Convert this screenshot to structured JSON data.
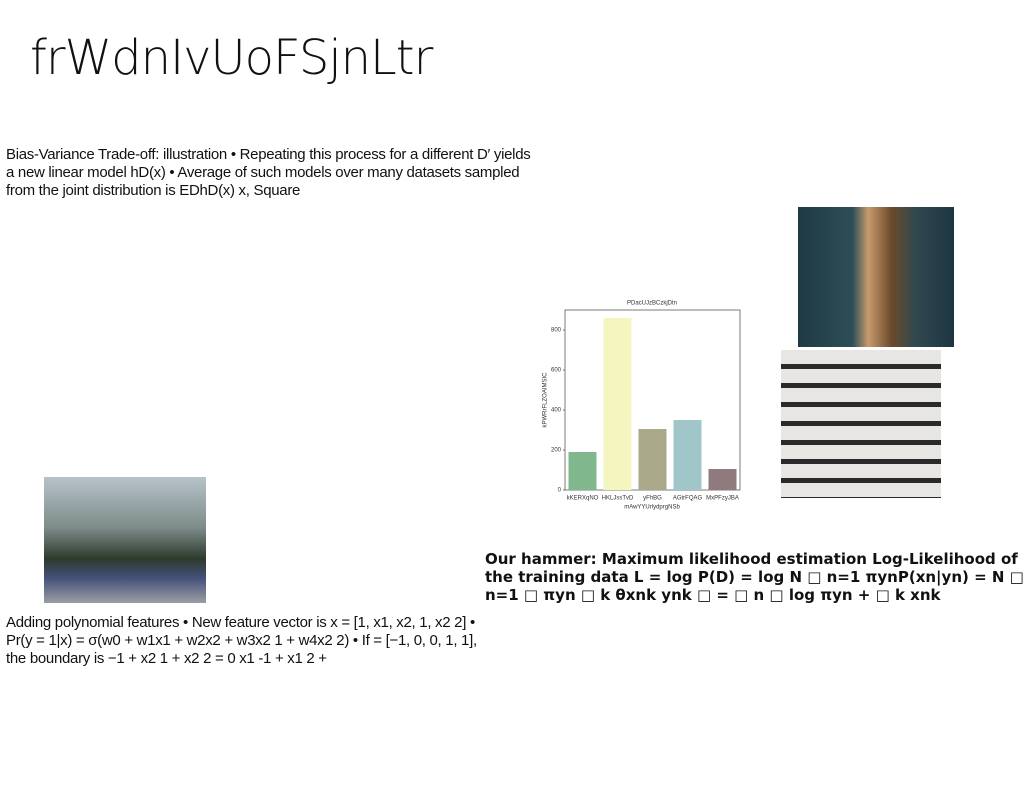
{
  "header": {
    "title": "frWdnIvUoFSjnLtr"
  },
  "paragraphs": [
    "Bias-Variance Trade-off: illustration • Repeating this process for a different D′ yields a new linear model hD(x) • Average of such models over many datasets sampled from the joint distribution is EDhD(x) x, Square",
    "Adding polynomial features • New feature vector is x = [1, x1, x2, 1, x2 2] • Pr(y = 1|x) = σ(w0 + w1x1 + w2x2 + w3x2 1 + w4x2 2) • If = [−1, 0, 0, 1, 1], the boundary is −1 + x2 1 + x2 2 = 0 x1 -1 + x1 2 +",
    "Our hammer: Maximum likelihood estimation Log-Likelihood of the training data L = log P(D) = log N □ n=1 πynP(xn|yn) = N □ n=1 □ πyn □ k θxnk ynk □ = □ n □ log πyn + □ k xnk"
  ],
  "chart_data": {
    "type": "bar",
    "title": "PDacUJzBCzkjDtn",
    "x_label": "mAwYYUrlydprgNSb",
    "y_label": "kPWRrFLZOAIMSIC",
    "categories": [
      "kKERXqNO",
      "HKLJssTvD",
      "yFhBG",
      "AGtrFQAG",
      "MxPFzyJBA"
    ],
    "values": [
      190,
      860,
      305,
      350,
      105
    ],
    "colors": [
      "#80b78c",
      "#f5f5c0",
      "#a9a98a",
      "#a1c6c9",
      "#8f7b7d"
    ],
    "ylim": [
      0,
      900
    ],
    "yticks": [
      0,
      200,
      400,
      600,
      800
    ]
  }
}
